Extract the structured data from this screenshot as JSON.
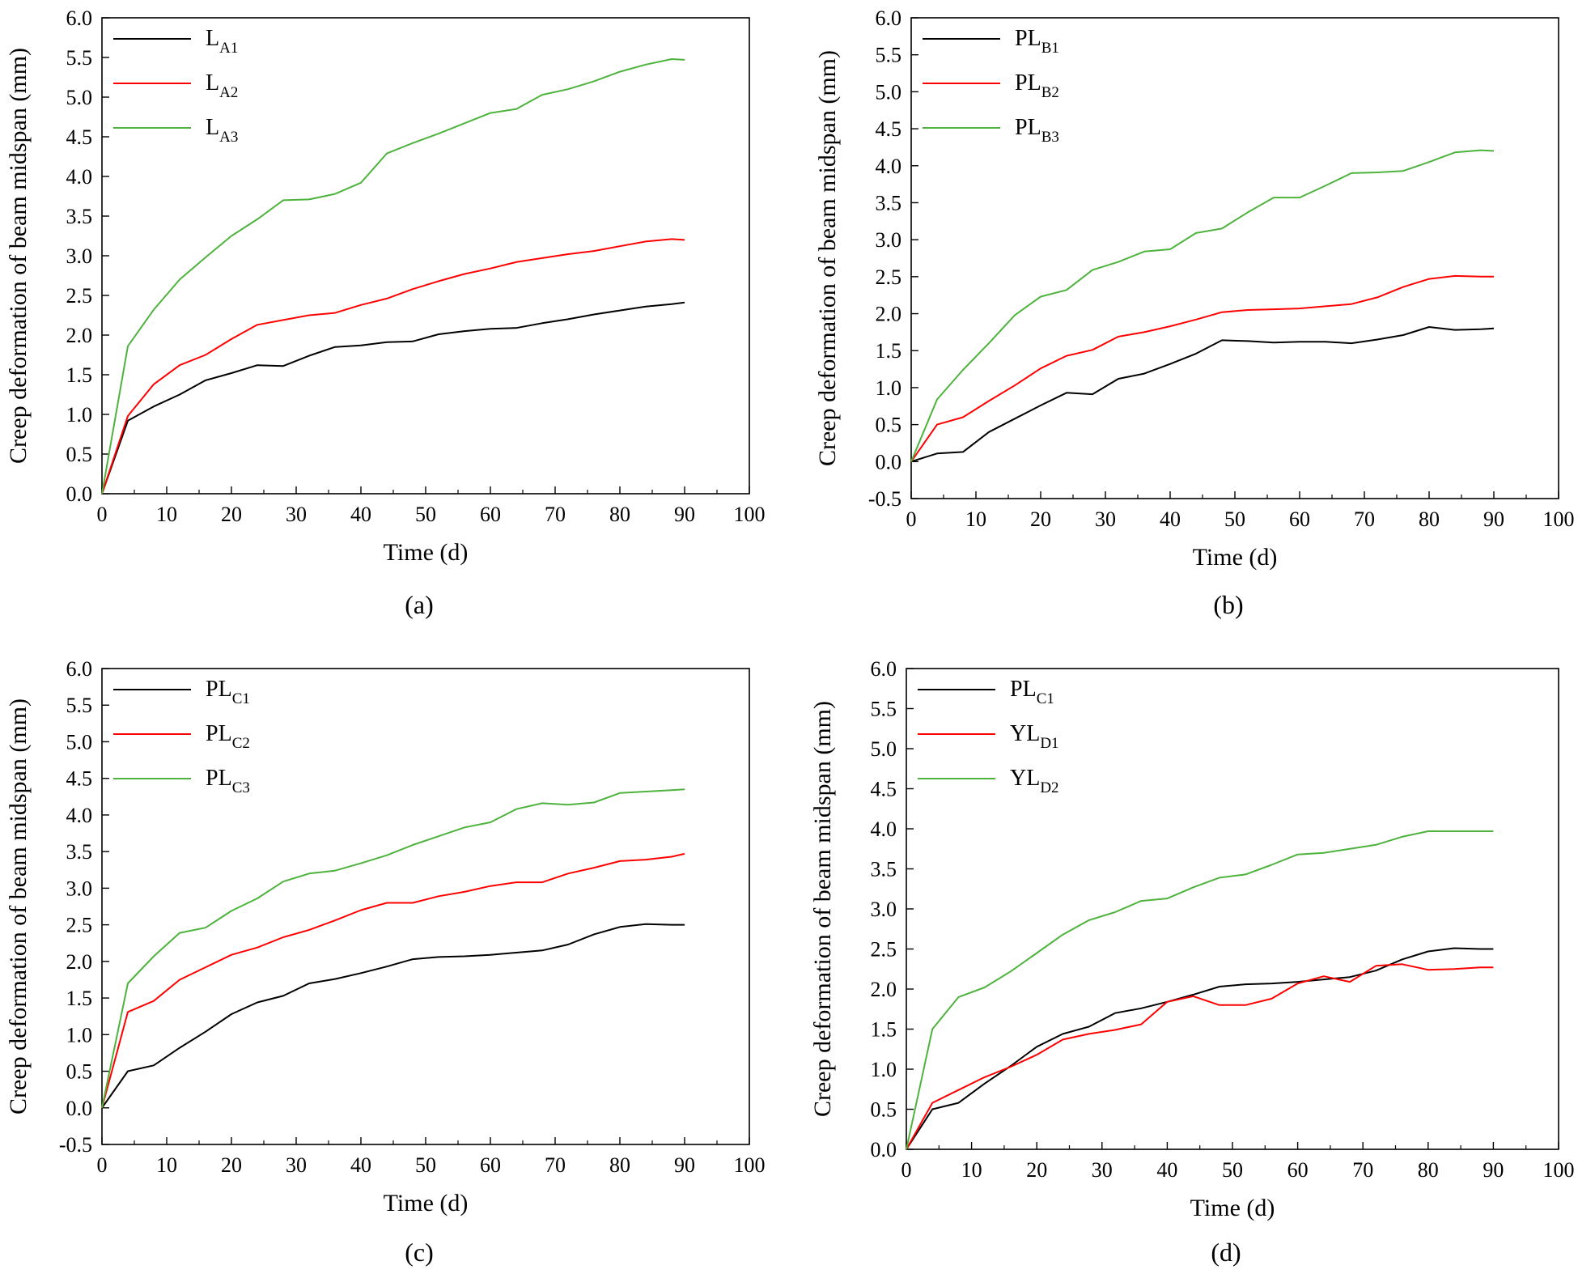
{
  "chart_data": [
    {
      "type": "line",
      "panel_label": "(a)",
      "xlabel": "Time (d)",
      "ylabel": "Creep deformation of beam midspan (mm)",
      "xlim": [
        0,
        100
      ],
      "ylim": [
        0.0,
        6.0
      ],
      "xticks": [
        "0",
        "10",
        "20",
        "30",
        "40",
        "50",
        "60",
        "70",
        "80",
        "90",
        "100"
      ],
      "yticks": [
        "0.0",
        "0.5",
        "1.0",
        "1.5",
        "2.0",
        "2.5",
        "3.0",
        "3.5",
        "4.0",
        "4.5",
        "5.0",
        "5.5",
        "6.0"
      ],
      "legend_position": "top-left",
      "series": [
        {
          "name": "LA1",
          "main": "L",
          "sub": "A1",
          "color": "#000000",
          "x": [
            0,
            4,
            8,
            12,
            16,
            20,
            24,
            28,
            32,
            36,
            40,
            44,
            48,
            52,
            56,
            60,
            64,
            68,
            72,
            76,
            80,
            84,
            88,
            90
          ],
          "y": [
            0.0,
            0.92,
            1.1,
            1.25,
            1.43,
            1.52,
            1.62,
            1.61,
            1.74,
            1.85,
            1.87,
            1.91,
            1.92,
            2.01,
            2.05,
            2.08,
            2.09,
            2.15,
            2.2,
            2.26,
            2.31,
            2.36,
            2.39,
            2.41
          ]
        },
        {
          "name": "LA2",
          "main": "L",
          "sub": "A2",
          "color": "#ff0000",
          "x": [
            0,
            4,
            8,
            12,
            16,
            20,
            24,
            28,
            32,
            36,
            40,
            44,
            48,
            52,
            56,
            60,
            64,
            68,
            72,
            76,
            80,
            84,
            88,
            90
          ],
          "y": [
            0.0,
            0.98,
            1.38,
            1.62,
            1.75,
            1.95,
            2.13,
            2.19,
            2.25,
            2.28,
            2.38,
            2.46,
            2.58,
            2.68,
            2.77,
            2.84,
            2.92,
            2.97,
            3.02,
            3.06,
            3.12,
            3.18,
            3.21,
            3.2
          ]
        },
        {
          "name": "LA3",
          "main": "L",
          "sub": "A3",
          "color": "#4db33d",
          "x": [
            0,
            4,
            8,
            12,
            16,
            20,
            24,
            28,
            32,
            36,
            40,
            44,
            48,
            52,
            56,
            60,
            64,
            68,
            72,
            76,
            80,
            84,
            88,
            90
          ],
          "y": [
            0.0,
            1.86,
            2.32,
            2.7,
            2.98,
            3.25,
            3.46,
            3.7,
            3.71,
            3.78,
            3.92,
            4.29,
            4.42,
            4.54,
            4.67,
            4.8,
            4.85,
            5.03,
            5.1,
            5.2,
            5.32,
            5.41,
            5.48,
            5.47
          ]
        }
      ]
    },
    {
      "type": "line",
      "panel_label": "(b)",
      "xlabel": "Time (d)",
      "ylabel": "Creep deformation of beam midspan (mm)",
      "xlim": [
        0,
        100
      ],
      "ylim": [
        -0.5,
        6.0
      ],
      "xticks": [
        "0",
        "10",
        "20",
        "30",
        "40",
        "50",
        "60",
        "70",
        "80",
        "90",
        "100"
      ],
      "yticks": [
        "-0.5",
        "0.0",
        "0.5",
        "1.0",
        "1.5",
        "2.0",
        "2.5",
        "3.0",
        "3.5",
        "4.0",
        "4.5",
        "5.0",
        "5.5",
        "6.0"
      ],
      "legend_position": "top-left",
      "series": [
        {
          "name": "PLB1",
          "main": "PL",
          "sub": "B1",
          "color": "#000000",
          "x": [
            0,
            4,
            8,
            12,
            16,
            20,
            24,
            28,
            32,
            36,
            40,
            44,
            48,
            52,
            56,
            60,
            64,
            68,
            72,
            76,
            80,
            84,
            88,
            90
          ],
          "y": [
            0.0,
            0.11,
            0.13,
            0.4,
            0.58,
            0.76,
            0.93,
            0.91,
            1.12,
            1.19,
            1.32,
            1.46,
            1.64,
            1.63,
            1.61,
            1.62,
            1.62,
            1.6,
            1.65,
            1.71,
            1.82,
            1.78,
            1.79,
            1.8
          ]
        },
        {
          "name": "PLB2",
          "main": "PL",
          "sub": "B2",
          "color": "#ff0000",
          "x": [
            0,
            4,
            8,
            12,
            16,
            20,
            24,
            28,
            32,
            36,
            40,
            44,
            48,
            52,
            56,
            60,
            64,
            68,
            72,
            76,
            80,
            84,
            88,
            90
          ],
          "y": [
            0.0,
            0.5,
            0.6,
            0.82,
            1.03,
            1.26,
            1.43,
            1.51,
            1.69,
            1.75,
            1.83,
            1.92,
            2.02,
            2.05,
            2.06,
            2.07,
            2.1,
            2.13,
            2.22,
            2.36,
            2.47,
            2.51,
            2.5,
            2.5
          ]
        },
        {
          "name": "PLB3",
          "main": "PL",
          "sub": "B3",
          "color": "#4db33d",
          "x": [
            0,
            4,
            8,
            12,
            16,
            20,
            24,
            28,
            32,
            36,
            40,
            44,
            48,
            52,
            56,
            60,
            64,
            68,
            72,
            76,
            80,
            84,
            88,
            90
          ],
          "y": [
            0.0,
            0.84,
            1.24,
            1.6,
            1.98,
            2.23,
            2.32,
            2.59,
            2.7,
            2.84,
            2.87,
            3.09,
            3.15,
            3.37,
            3.57,
            3.57,
            3.73,
            3.9,
            3.91,
            3.93,
            4.05,
            4.18,
            4.21,
            4.2
          ]
        }
      ]
    },
    {
      "type": "line",
      "panel_label": "(c)",
      "xlabel": "Time (d)",
      "ylabel": "Creep deformation of beam midspan (mm)",
      "xlim": [
        0,
        100
      ],
      "ylim": [
        -0.5,
        6.0
      ],
      "xticks": [
        "0",
        "10",
        "20",
        "30",
        "40",
        "50",
        "60",
        "70",
        "80",
        "90",
        "100"
      ],
      "yticks": [
        "-0.5",
        "0.0",
        "0.5",
        "1.0",
        "1.5",
        "2.0",
        "2.5",
        "3.0",
        "3.5",
        "4.0",
        "4.5",
        "5.0",
        "5.5",
        "6.0"
      ],
      "legend_position": "top-left",
      "series": [
        {
          "name": "PLC1",
          "main": "PL",
          "sub": "C1",
          "color": "#000000",
          "x": [
            0,
            4,
            8,
            12,
            16,
            20,
            24,
            28,
            32,
            36,
            40,
            44,
            48,
            52,
            56,
            60,
            64,
            68,
            72,
            76,
            80,
            84,
            88,
            90
          ],
          "y": [
            0.0,
            0.5,
            0.58,
            0.82,
            1.04,
            1.28,
            1.44,
            1.53,
            1.7,
            1.76,
            1.84,
            1.93,
            2.03,
            2.06,
            2.07,
            2.09,
            2.12,
            2.15,
            2.23,
            2.37,
            2.47,
            2.51,
            2.5,
            2.5
          ]
        },
        {
          "name": "PLC2",
          "main": "PL",
          "sub": "C2",
          "color": "#ff0000",
          "x": [
            0,
            4,
            8,
            12,
            16,
            20,
            24,
            28,
            32,
            36,
            40,
            44,
            48,
            52,
            56,
            60,
            64,
            68,
            72,
            76,
            80,
            84,
            88,
            90
          ],
          "y": [
            0.0,
            1.31,
            1.46,
            1.75,
            1.92,
            2.09,
            2.19,
            2.33,
            2.43,
            2.56,
            2.7,
            2.8,
            2.8,
            2.89,
            2.95,
            3.03,
            3.08,
            3.08,
            3.2,
            3.28,
            3.37,
            3.39,
            3.43,
            3.47
          ]
        },
        {
          "name": "PLC3",
          "main": "PL",
          "sub": "C3",
          "color": "#4db33d",
          "x": [
            0,
            4,
            8,
            12,
            16,
            20,
            24,
            28,
            32,
            36,
            40,
            44,
            48,
            52,
            56,
            60,
            64,
            68,
            72,
            76,
            80,
            84,
            88,
            90
          ],
          "y": [
            0.0,
            1.7,
            2.07,
            2.39,
            2.46,
            2.69,
            2.86,
            3.09,
            3.2,
            3.24,
            3.34,
            3.45,
            3.59,
            3.71,
            3.83,
            3.9,
            4.08,
            4.16,
            4.14,
            4.17,
            4.3,
            4.32,
            4.34,
            4.35
          ]
        }
      ]
    },
    {
      "type": "line",
      "panel_label": "(d)",
      "xlabel": "Time (d)",
      "ylabel": "Creep deformation of beam midspan (mm)",
      "xlim": [
        0,
        100
      ],
      "ylim": [
        0.0,
        6.0
      ],
      "xticks": [
        "0",
        "10",
        "20",
        "30",
        "40",
        "50",
        "60",
        "70",
        "80",
        "90",
        "100"
      ],
      "yticks": [
        "0.0",
        "0.5",
        "1.0",
        "1.5",
        "2.0",
        "2.5",
        "3.0",
        "3.5",
        "4.0",
        "4.5",
        "5.0",
        "5.5",
        "6.0"
      ],
      "legend_position": "top-left",
      "series": [
        {
          "name": "PLC1",
          "main": "PL",
          "sub": "C1",
          "color": "#000000",
          "x": [
            0,
            4,
            8,
            12,
            16,
            20,
            24,
            28,
            32,
            36,
            40,
            44,
            48,
            52,
            56,
            60,
            64,
            68,
            72,
            76,
            80,
            84,
            88,
            90
          ],
          "y": [
            0.0,
            0.5,
            0.58,
            0.82,
            1.04,
            1.28,
            1.44,
            1.53,
            1.7,
            1.76,
            1.84,
            1.93,
            2.03,
            2.06,
            2.07,
            2.09,
            2.12,
            2.15,
            2.23,
            2.37,
            2.47,
            2.51,
            2.5,
            2.5
          ]
        },
        {
          "name": "YLD1",
          "main": "YL",
          "sub": "D1",
          "color": "#ff0000",
          "x": [
            0,
            4,
            8,
            12,
            16,
            20,
            24,
            28,
            32,
            36,
            40,
            44,
            48,
            52,
            56,
            60,
            64,
            68,
            72,
            76,
            80,
            84,
            88,
            90
          ],
          "y": [
            0.0,
            0.58,
            0.74,
            0.9,
            1.03,
            1.18,
            1.37,
            1.44,
            1.49,
            1.56,
            1.84,
            1.91,
            1.8,
            1.8,
            1.88,
            2.07,
            2.16,
            2.09,
            2.29,
            2.31,
            2.24,
            2.25,
            2.27,
            2.27
          ]
        },
        {
          "name": "YLD2",
          "main": "YL",
          "sub": "D2",
          "color": "#4db33d",
          "x": [
            0,
            4,
            8,
            12,
            16,
            20,
            24,
            28,
            32,
            36,
            40,
            44,
            48,
            52,
            56,
            60,
            64,
            68,
            72,
            76,
            80,
            84,
            88,
            90
          ],
          "y": [
            0.0,
            1.5,
            1.9,
            2.02,
            2.22,
            2.45,
            2.68,
            2.86,
            2.96,
            3.1,
            3.13,
            3.27,
            3.39,
            3.43,
            3.55,
            3.68,
            3.7,
            3.75,
            3.8,
            3.9,
            3.97,
            3.97,
            3.97,
            3.97
          ]
        }
      ]
    }
  ]
}
